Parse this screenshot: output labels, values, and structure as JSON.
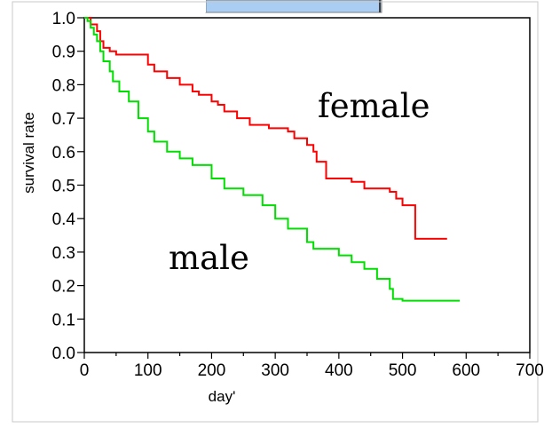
{
  "chart_data": {
    "type": "line",
    "xlabel": "day'",
    "ylabel": "survival rate",
    "xlim": [
      0,
      700
    ],
    "ylim": [
      0.0,
      1.0
    ],
    "x_ticks": [
      "0",
      "100",
      "200",
      "300",
      "400",
      "500",
      "600",
      "700"
    ],
    "y_ticks": [
      "0.0",
      "0.1",
      "0.2",
      "0.3",
      "0.4",
      "0.5",
      "0.6",
      "0.7",
      "0.8",
      "0.9",
      "1.0"
    ],
    "grid": false,
    "series": [
      {
        "name": "female",
        "color": "#ff0000",
        "x": [
          0,
          10,
          20,
          25,
          30,
          40,
          50,
          100,
          110,
          130,
          150,
          170,
          180,
          200,
          210,
          220,
          240,
          260,
          290,
          320,
          330,
          350,
          360,
          365,
          380,
          420,
          440,
          480,
          490,
          500,
          520,
          570
        ],
        "y": [
          1.0,
          0.98,
          0.96,
          0.93,
          0.91,
          0.9,
          0.89,
          0.86,
          0.84,
          0.82,
          0.8,
          0.78,
          0.77,
          0.75,
          0.74,
          0.72,
          0.7,
          0.68,
          0.67,
          0.66,
          0.64,
          0.62,
          0.6,
          0.57,
          0.52,
          0.51,
          0.49,
          0.48,
          0.46,
          0.44,
          0.34,
          0.34
        ]
      },
      {
        "name": "male",
        "color": "#00e000",
        "x": [
          0,
          5,
          10,
          15,
          20,
          25,
          30,
          40,
          45,
          55,
          70,
          85,
          100,
          110,
          130,
          150,
          170,
          200,
          220,
          250,
          280,
          300,
          320,
          350,
          360,
          400,
          420,
          440,
          460,
          480,
          485,
          500,
          590
        ],
        "y": [
          1.0,
          0.99,
          0.97,
          0.95,
          0.93,
          0.9,
          0.87,
          0.84,
          0.81,
          0.78,
          0.75,
          0.7,
          0.66,
          0.63,
          0.6,
          0.58,
          0.56,
          0.52,
          0.49,
          0.47,
          0.44,
          0.4,
          0.37,
          0.33,
          0.31,
          0.29,
          0.27,
          0.25,
          0.22,
          0.19,
          0.16,
          0.155,
          0.155
        ]
      }
    ],
    "annotations": [
      "female",
      "male"
    ]
  }
}
